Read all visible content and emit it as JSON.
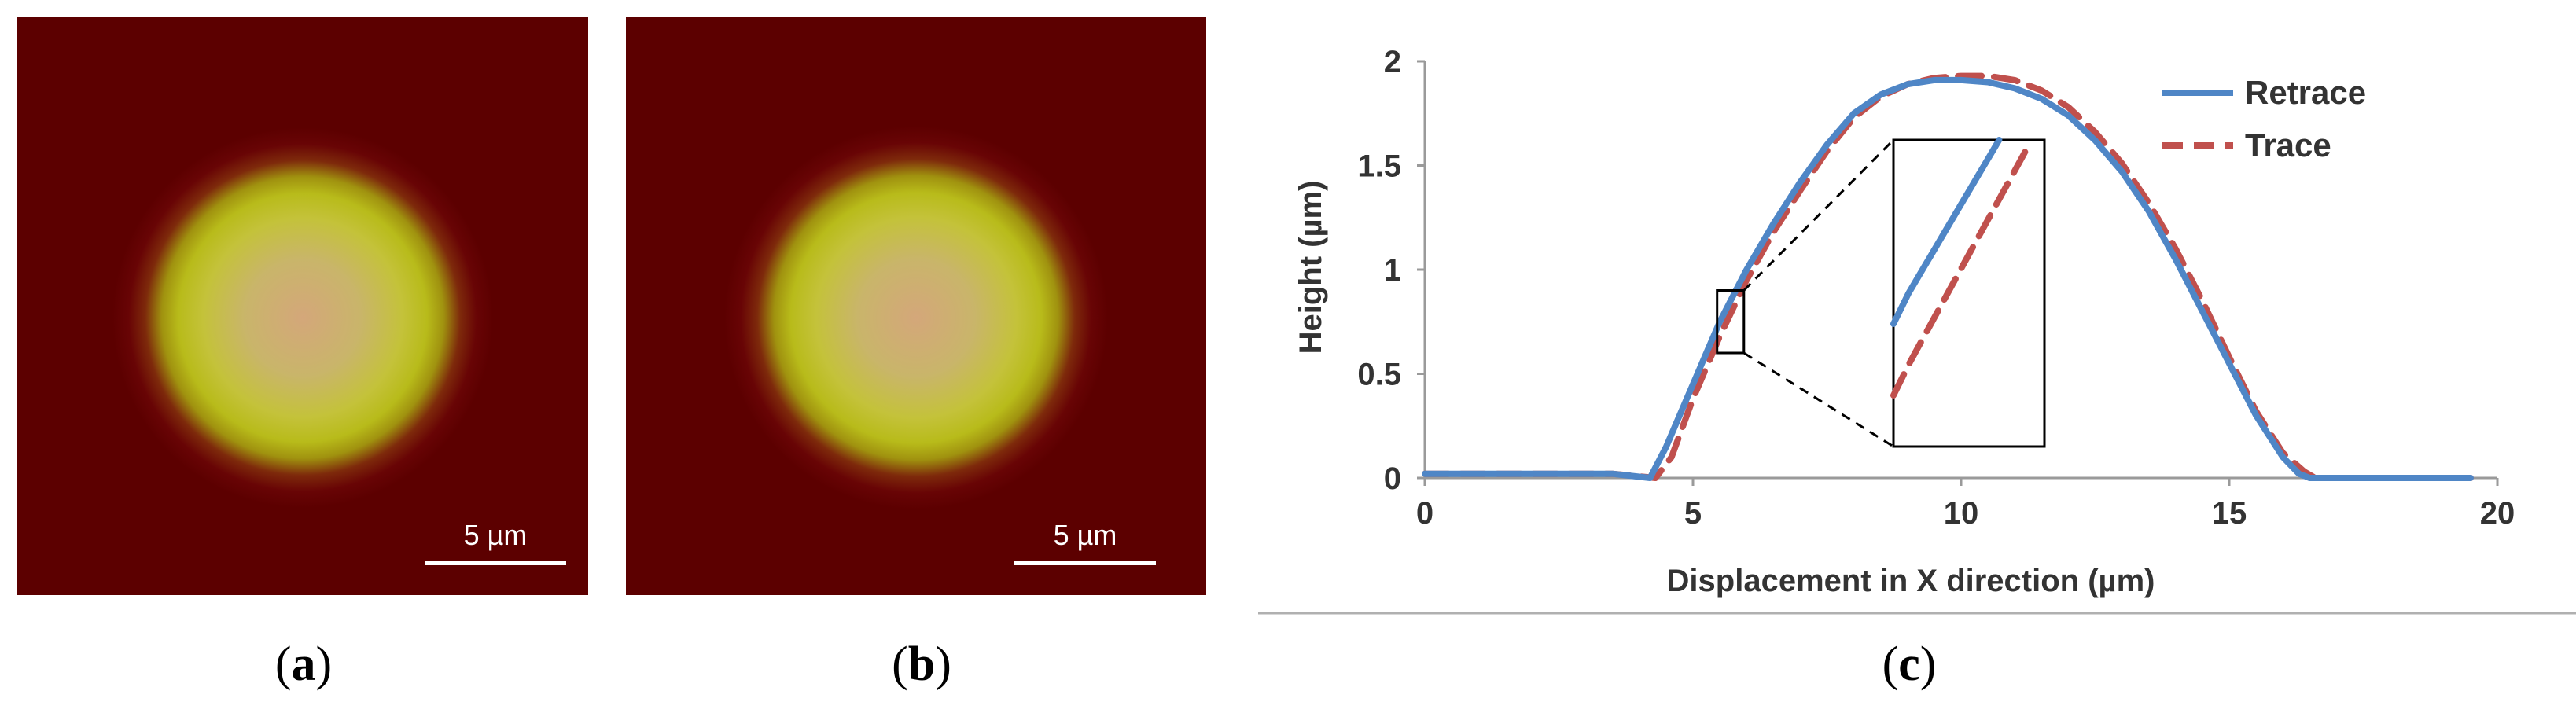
{
  "panels": {
    "a": {
      "label": "a",
      "scale_text": "5 µm"
    },
    "b": {
      "label": "b",
      "scale_text": "5 µm"
    },
    "c": {
      "label": "c"
    }
  },
  "colors": {
    "retrace": "#4f86c6",
    "trace": "#c0504d",
    "afm_background": "#5c0000"
  },
  "chart_data": {
    "type": "line",
    "title": "",
    "xlabel": "Displacement  in X direction (µm)",
    "ylabel": "Height  (µm)",
    "xlim": [
      0,
      20
    ],
    "ylim": [
      0,
      2
    ],
    "xticks": [
      0,
      5,
      10,
      15,
      20
    ],
    "yticks": [
      0,
      0.5,
      1,
      1.5,
      2
    ],
    "ytick_labels": [
      "0",
      "0.5",
      "1",
      "1.5",
      "2"
    ],
    "grid": false,
    "legend_position": "top-right",
    "series": [
      {
        "name": "Retrace",
        "style": "solid",
        "x": [
          0,
          3.5,
          4.2,
          4.5,
          5.0,
          5.5,
          6.0,
          6.5,
          7.0,
          7.5,
          8.0,
          8.5,
          9.0,
          9.5,
          10.0,
          10.5,
          11.0,
          11.5,
          12.0,
          12.5,
          13.0,
          13.5,
          14.0,
          14.5,
          15.0,
          15.5,
          16.0,
          16.3,
          16.5,
          19.5
        ],
        "y": [
          0.02,
          0.02,
          0.0,
          0.15,
          0.45,
          0.75,
          1.0,
          1.22,
          1.42,
          1.6,
          1.75,
          1.84,
          1.89,
          1.91,
          1.91,
          1.9,
          1.87,
          1.82,
          1.74,
          1.62,
          1.47,
          1.28,
          1.05,
          0.8,
          0.55,
          0.3,
          0.1,
          0.02,
          0.0,
          0.0
        ]
      },
      {
        "name": "Trace",
        "style": "dashed",
        "x": [
          0,
          3.5,
          4.3,
          4.6,
          5.0,
          5.5,
          6.0,
          6.5,
          7.0,
          7.5,
          8.0,
          8.5,
          9.0,
          9.5,
          10.0,
          10.5,
          11.0,
          11.5,
          12.0,
          12.5,
          13.0,
          13.5,
          14.0,
          14.5,
          15.0,
          15.5,
          16.0,
          16.4,
          16.6,
          19.5
        ],
        "y": [
          0.02,
          0.02,
          0.0,
          0.1,
          0.38,
          0.68,
          0.95,
          1.18,
          1.38,
          1.57,
          1.73,
          1.83,
          1.89,
          1.92,
          1.93,
          1.93,
          1.91,
          1.86,
          1.78,
          1.66,
          1.51,
          1.32,
          1.1,
          0.85,
          0.58,
          0.32,
          0.12,
          0.03,
          0.0,
          0.0
        ]
      }
    ]
  }
}
